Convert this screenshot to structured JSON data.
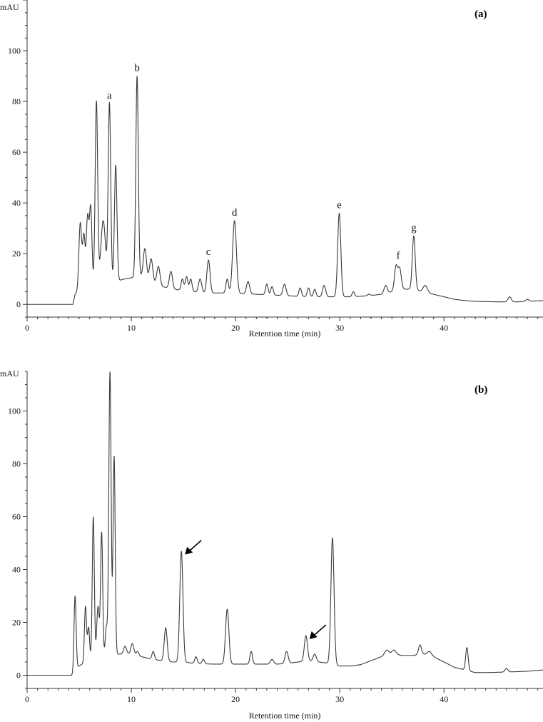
{
  "chart_data": [
    {
      "type": "line",
      "panel_label": "(a)",
      "unit_label": "mAU",
      "xlabel": "Retention time (min)",
      "ylabel": "",
      "xlim": [
        0,
        49.5
      ],
      "ylim": [
        -5,
        120
      ],
      "x_ticks": [
        0,
        10,
        20,
        30,
        40
      ],
      "y_ticks": [
        0,
        20,
        40,
        60,
        80,
        100
      ],
      "grid": false,
      "baseline": [
        [
          0,
          0
        ],
        [
          4.4,
          0
        ],
        [
          4.6,
          4
        ],
        [
          4.9,
          5
        ],
        [
          5.3,
          6
        ],
        [
          6.3,
          7
        ],
        [
          7.5,
          8
        ],
        [
          8.5,
          9
        ],
        [
          9.3,
          10
        ],
        [
          10,
          10.5
        ],
        [
          11,
          11
        ],
        [
          12,
          9
        ],
        [
          13,
          7
        ],
        [
          14,
          6
        ],
        [
          15,
          5.5
        ],
        [
          16,
          5
        ],
        [
          17,
          4.5
        ],
        [
          18,
          4.5
        ],
        [
          19,
          4.5
        ],
        [
          20,
          4.3
        ],
        [
          21,
          4.2
        ],
        [
          22,
          4
        ],
        [
          23,
          3.8
        ],
        [
          24,
          3.6
        ],
        [
          25,
          3.4
        ],
        [
          26,
          3.2
        ],
        [
          27,
          3
        ],
        [
          28,
          3
        ],
        [
          29,
          3
        ],
        [
          30,
          3
        ],
        [
          31,
          3
        ],
        [
          32,
          3.2
        ],
        [
          33,
          3.5
        ],
        [
          34,
          4
        ],
        [
          35,
          5
        ],
        [
          36,
          6
        ],
        [
          37,
          6
        ],
        [
          38,
          5
        ],
        [
          39,
          4
        ],
        [
          40,
          3
        ],
        [
          41,
          2
        ],
        [
          42,
          1.5
        ],
        [
          43,
          1.2
        ],
        [
          45,
          1
        ],
        [
          47,
          1
        ],
        [
          49.5,
          1.5
        ]
      ],
      "peaks": [
        {
          "rt": 5.1,
          "height": 32,
          "width": 0.13
        },
        {
          "rt": 5.45,
          "height": 27,
          "width": 0.12
        },
        {
          "rt": 5.8,
          "height": 34,
          "width": 0.12
        },
        {
          "rt": 6.1,
          "height": 38,
          "width": 0.12
        },
        {
          "rt": 6.65,
          "height": 80,
          "width": 0.12
        },
        {
          "rt": 7.3,
          "height": 33,
          "width": 0.22
        },
        {
          "rt": 7.9,
          "height": 79,
          "width": 0.12
        },
        {
          "rt": 8.5,
          "height": 55,
          "width": 0.12
        },
        {
          "rt": 10.55,
          "height": 90,
          "width": 0.12
        },
        {
          "rt": 11.3,
          "height": 22,
          "width": 0.15
        },
        {
          "rt": 11.9,
          "height": 18,
          "width": 0.15
        },
        {
          "rt": 12.6,
          "height": 15,
          "width": 0.15
        },
        {
          "rt": 13.8,
          "height": 13,
          "width": 0.15
        },
        {
          "rt": 14.9,
          "height": 10,
          "width": 0.12
        },
        {
          "rt": 15.3,
          "height": 11,
          "width": 0.12
        },
        {
          "rt": 15.7,
          "height": 10,
          "width": 0.12
        },
        {
          "rt": 16.6,
          "height": 10,
          "width": 0.15
        },
        {
          "rt": 17.4,
          "height": 17.5,
          "width": 0.15
        },
        {
          "rt": 19.2,
          "height": 10,
          "width": 0.12
        },
        {
          "rt": 19.9,
          "height": 33,
          "width": 0.18
        },
        {
          "rt": 21.2,
          "height": 9,
          "width": 0.15
        },
        {
          "rt": 23.0,
          "height": 8,
          "width": 0.12
        },
        {
          "rt": 23.5,
          "height": 7,
          "width": 0.12
        },
        {
          "rt": 24.7,
          "height": 8,
          "width": 0.15
        },
        {
          "rt": 26.2,
          "height": 6.5,
          "width": 0.12
        },
        {
          "rt": 27.0,
          "height": 6.5,
          "width": 0.12
        },
        {
          "rt": 27.6,
          "height": 6,
          "width": 0.12
        },
        {
          "rt": 28.5,
          "height": 7.5,
          "width": 0.15
        },
        {
          "rt": 29.95,
          "height": 36,
          "width": 0.15
        },
        {
          "rt": 31.3,
          "height": 5,
          "width": 0.12
        },
        {
          "rt": 32.8,
          "height": 4,
          "width": 0.15
        },
        {
          "rt": 34.4,
          "height": 7.5,
          "width": 0.15
        },
        {
          "rt": 35.4,
          "height": 15,
          "width": 0.15
        },
        {
          "rt": 35.75,
          "height": 14,
          "width": 0.15
        },
        {
          "rt": 37.1,
          "height": 27,
          "width": 0.14
        },
        {
          "rt": 38.2,
          "height": 7.5,
          "width": 0.2
        },
        {
          "rt": 46.3,
          "height": 3,
          "width": 0.15
        },
        {
          "rt": 48.0,
          "height": 2,
          "width": 0.15
        }
      ],
      "annotations": [
        {
          "label": "a",
          "x": 7.9,
          "y": 79
        },
        {
          "label": "b",
          "x": 10.55,
          "y": 90
        },
        {
          "label": "c",
          "x": 17.4,
          "y": 17.5
        },
        {
          "label": "d",
          "x": 19.9,
          "y": 33
        },
        {
          "label": "e",
          "x": 29.95,
          "y": 36
        },
        {
          "label": "f",
          "x": 35.6,
          "y": 16
        },
        {
          "label": "g",
          "x": 37.1,
          "y": 27
        }
      ],
      "arrows": []
    },
    {
      "type": "line",
      "panel_label": "(b)",
      "unit_label": "mAU",
      "xlabel": "Retention time (min)",
      "ylabel": "",
      "xlim": [
        0,
        49.5
      ],
      "ylim": [
        -5,
        115
      ],
      "x_ticks": [
        0,
        10,
        20,
        30,
        40
      ],
      "y_ticks": [
        0,
        20,
        40,
        60,
        80,
        100
      ],
      "grid": false,
      "baseline": [
        [
          0,
          0
        ],
        [
          4.4,
          0
        ],
        [
          4.8,
          3
        ],
        [
          5.2,
          4
        ],
        [
          6,
          5
        ],
        [
          7,
          7
        ],
        [
          8,
          8
        ],
        [
          9,
          8
        ],
        [
          10,
          8
        ],
        [
          11,
          7
        ],
        [
          12,
          6
        ],
        [
          13,
          5.5
        ],
        [
          14,
          5
        ],
        [
          15,
          5
        ],
        [
          16,
          4.5
        ],
        [
          17,
          4.3
        ],
        [
          18,
          4.2
        ],
        [
          19,
          4.2
        ],
        [
          20,
          4.2
        ],
        [
          21,
          4.2
        ],
        [
          22,
          4.2
        ],
        [
          23,
          4.2
        ],
        [
          24,
          4.2
        ],
        [
          25,
          4.5
        ],
        [
          26,
          5
        ],
        [
          27,
          5.5
        ],
        [
          28,
          5
        ],
        [
          29,
          4.5
        ],
        [
          30,
          3.5
        ],
        [
          31,
          3.5
        ],
        [
          32,
          4
        ],
        [
          33,
          5.5
        ],
        [
          34,
          7
        ],
        [
          35,
          8
        ],
        [
          36,
          7.5
        ],
        [
          37,
          7.5
        ],
        [
          38,
          8
        ],
        [
          39,
          7
        ],
        [
          40,
          5
        ],
        [
          41,
          3
        ],
        [
          42,
          2
        ],
        [
          43,
          1
        ],
        [
          44,
          1
        ],
        [
          46,
          1.2
        ],
        [
          48,
          1.5
        ],
        [
          49.5,
          2
        ]
      ],
      "peaks": [
        {
          "rt": 4.6,
          "height": 30,
          "width": 0.1
        },
        {
          "rt": 5.6,
          "height": 26,
          "width": 0.1
        },
        {
          "rt": 5.9,
          "height": 18,
          "width": 0.1
        },
        {
          "rt": 6.35,
          "height": 60,
          "width": 0.1
        },
        {
          "rt": 6.8,
          "height": 26,
          "width": 0.12
        },
        {
          "rt": 7.15,
          "height": 54,
          "width": 0.1
        },
        {
          "rt": 7.6,
          "height": 18,
          "width": 0.1
        },
        {
          "rt": 7.95,
          "height": 115,
          "width": 0.11
        },
        {
          "rt": 8.35,
          "height": 83,
          "width": 0.1
        },
        {
          "rt": 9.4,
          "height": 11,
          "width": 0.14
        },
        {
          "rt": 10.1,
          "height": 12,
          "width": 0.14
        },
        {
          "rt": 10.6,
          "height": 9,
          "width": 0.12
        },
        {
          "rt": 12.1,
          "height": 9,
          "width": 0.12
        },
        {
          "rt": 13.3,
          "height": 18,
          "width": 0.14
        },
        {
          "rt": 14.8,
          "height": 47,
          "width": 0.15
        },
        {
          "rt": 16.2,
          "height": 7,
          "width": 0.12
        },
        {
          "rt": 16.9,
          "height": 6,
          "width": 0.12
        },
        {
          "rt": 19.2,
          "height": 25,
          "width": 0.16
        },
        {
          "rt": 21.5,
          "height": 9,
          "width": 0.12
        },
        {
          "rt": 23.5,
          "height": 6,
          "width": 0.15
        },
        {
          "rt": 24.9,
          "height": 9,
          "width": 0.15
        },
        {
          "rt": 26.75,
          "height": 15,
          "width": 0.15
        },
        {
          "rt": 27.6,
          "height": 8,
          "width": 0.15
        },
        {
          "rt": 29.3,
          "height": 52,
          "width": 0.15
        },
        {
          "rt": 34.5,
          "height": 9.5,
          "width": 0.2
        },
        {
          "rt": 35.2,
          "height": 9.5,
          "width": 0.2
        },
        {
          "rt": 37.7,
          "height": 11.5,
          "width": 0.14
        },
        {
          "rt": 38.6,
          "height": 9,
          "width": 0.2
        },
        {
          "rt": 42.2,
          "height": 10.5,
          "width": 0.12
        },
        {
          "rt": 46.0,
          "height": 2.5,
          "width": 0.15
        }
      ],
      "annotations": [],
      "arrows": [
        {
          "x": 14.8,
          "y": 47
        },
        {
          "x": 26.75,
          "y": 15
        }
      ]
    }
  ]
}
